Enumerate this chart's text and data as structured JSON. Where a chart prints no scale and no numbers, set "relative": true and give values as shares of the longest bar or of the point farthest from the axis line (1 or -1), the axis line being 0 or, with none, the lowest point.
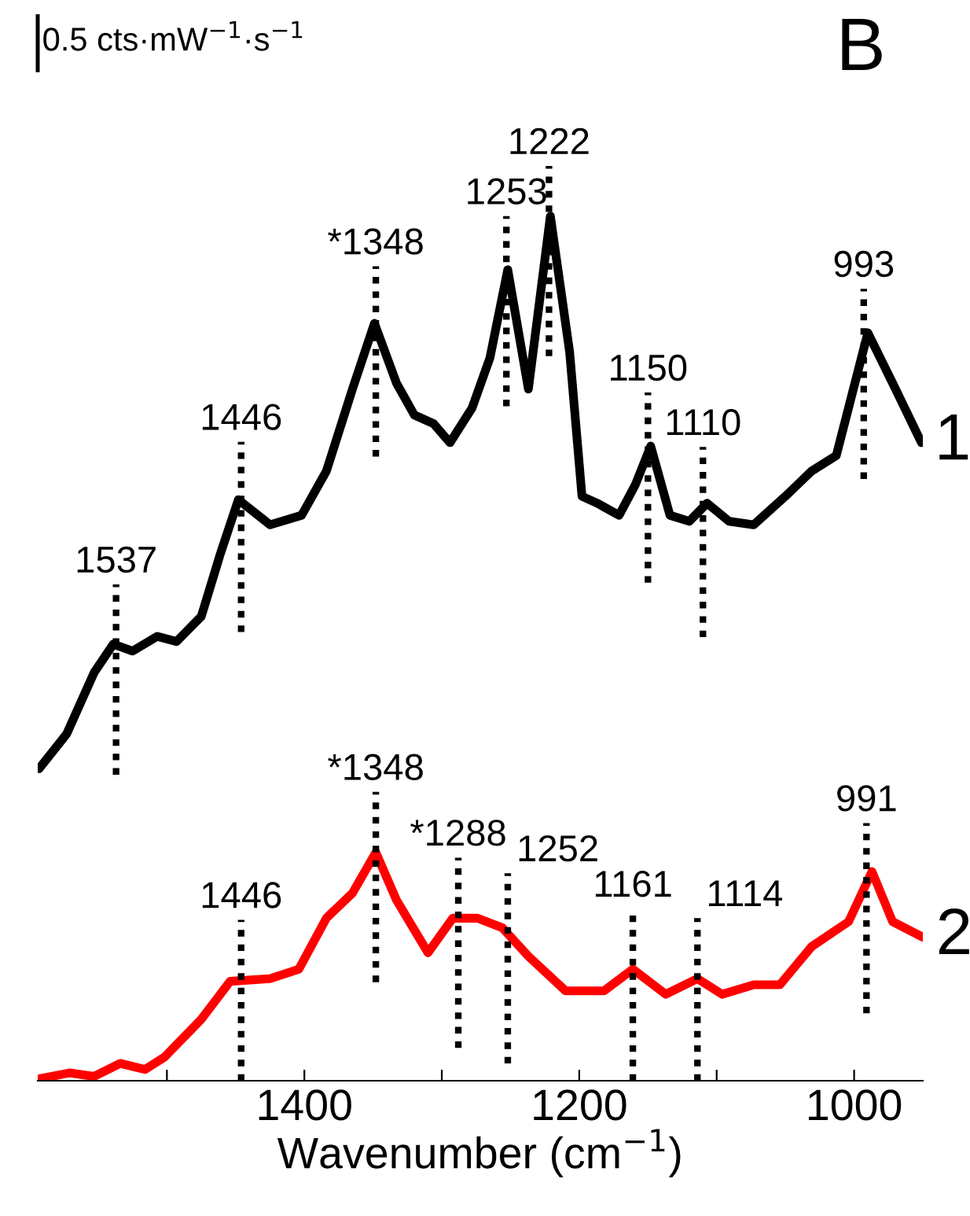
{
  "chart_data": {
    "type": "line",
    "title": "B",
    "xlabel": "Wavenumber (cm$^{−1}$)",
    "relative": true,
    "xlim": [
      1594,
      950
    ],
    "xticks": [
      {
        "value": 1500,
        "label": null
      },
      1400,
      {
        "value": 1300,
        "label": null
      },
      1200,
      {
        "value": 1100,
        "label": null
      },
      1000
    ],
    "series": [
      {
        "name": "1",
        "color": "#000000",
        "x": [
          1593,
          1573,
          1553,
          1539,
          1525,
          1507,
          1493,
          1475,
          1461,
          1448,
          1425,
          1402,
          1384,
          1365,
          1349,
          1333,
          1320,
          1306,
          1294,
          1278,
          1265,
          1252,
          1237,
          1221,
          1207,
          1198,
          1187,
          1171,
          1159,
          1148,
          1134,
          1120,
          1107,
          1091,
          1073,
          1050,
          1031,
          1013,
          990,
          972,
          951
        ],
        "values": [
          0.361,
          0.401,
          0.472,
          0.505,
          0.497,
          0.514,
          0.508,
          0.537,
          0.61,
          0.672,
          0.643,
          0.654,
          0.705,
          0.8,
          0.876,
          0.807,
          0.77,
          0.76,
          0.738,
          0.778,
          0.836,
          0.938,
          0.8,
          1.0,
          0.843,
          0.676,
          0.668,
          0.654,
          0.69,
          0.734,
          0.654,
          0.647,
          0.668,
          0.647,
          0.643,
          0.676,
          0.705,
          0.723,
          0.865,
          0.807,
          0.738
        ]
      },
      {
        "name": "2",
        "color": "#ff0000",
        "x": [
          1594,
          1571,
          1553,
          1534,
          1516,
          1502,
          1475,
          1454,
          1425,
          1404,
          1384,
          1365,
          1348,
          1333,
          1310,
          1292,
          1274,
          1256,
          1237,
          1210,
          1182,
          1161,
          1137,
          1114,
          1096,
          1073,
          1054,
          1031,
          1004,
          987,
          972,
          950
        ],
        "values": [
          0.002,
          0.009,
          0.005,
          0.02,
          0.013,
          0.027,
          0.071,
          0.115,
          0.118,
          0.129,
          0.188,
          0.217,
          0.264,
          0.209,
          0.148,
          0.188,
          0.188,
          0.177,
          0.144,
          0.104,
          0.104,
          0.129,
          0.1,
          0.118,
          0.1,
          0.111,
          0.111,
          0.155,
          0.184,
          0.242,
          0.184,
          0.166
        ]
      }
    ],
    "annotations": [
      "0.5 cts·mW$^{−1}$·s$^{−1}$",
      {
        "text": "1537",
        "x": 1537,
        "y": 0.504
      },
      {
        "text": "1446",
        "x": 1446,
        "y": 0.669
      },
      {
        "text": "*1348",
        "x": 1348,
        "y": 0.872
      },
      {
        "text": "1253",
        "x": 1253,
        "y": 0.93
      },
      {
        "text": "1222",
        "x": 1222,
        "y": 0.988
      },
      {
        "text": "1150",
        "x": 1150,
        "y": 0.726
      },
      {
        "text": "1110",
        "x": 1110,
        "y": 0.663
      },
      {
        "text": "993",
        "x": 993,
        "y": 0.846
      },
      {
        "text": "1446",
        "x": 1446,
        "y": 0.116
      },
      {
        "text": "*1348",
        "x": 1348,
        "y": 0.264
      },
      {
        "text": "*1288",
        "x": 1288,
        "y": 0.188
      },
      {
        "text": "1252",
        "x": 1252,
        "y": 0.17
      },
      {
        "text": "1161",
        "x": 1161,
        "y": 0.129
      },
      {
        "text": "1114",
        "x": 1114,
        "y": 0.118
      },
      {
        "text": "991",
        "x": 991,
        "y": 0.228
      }
    ],
    "legend": false
  }
}
